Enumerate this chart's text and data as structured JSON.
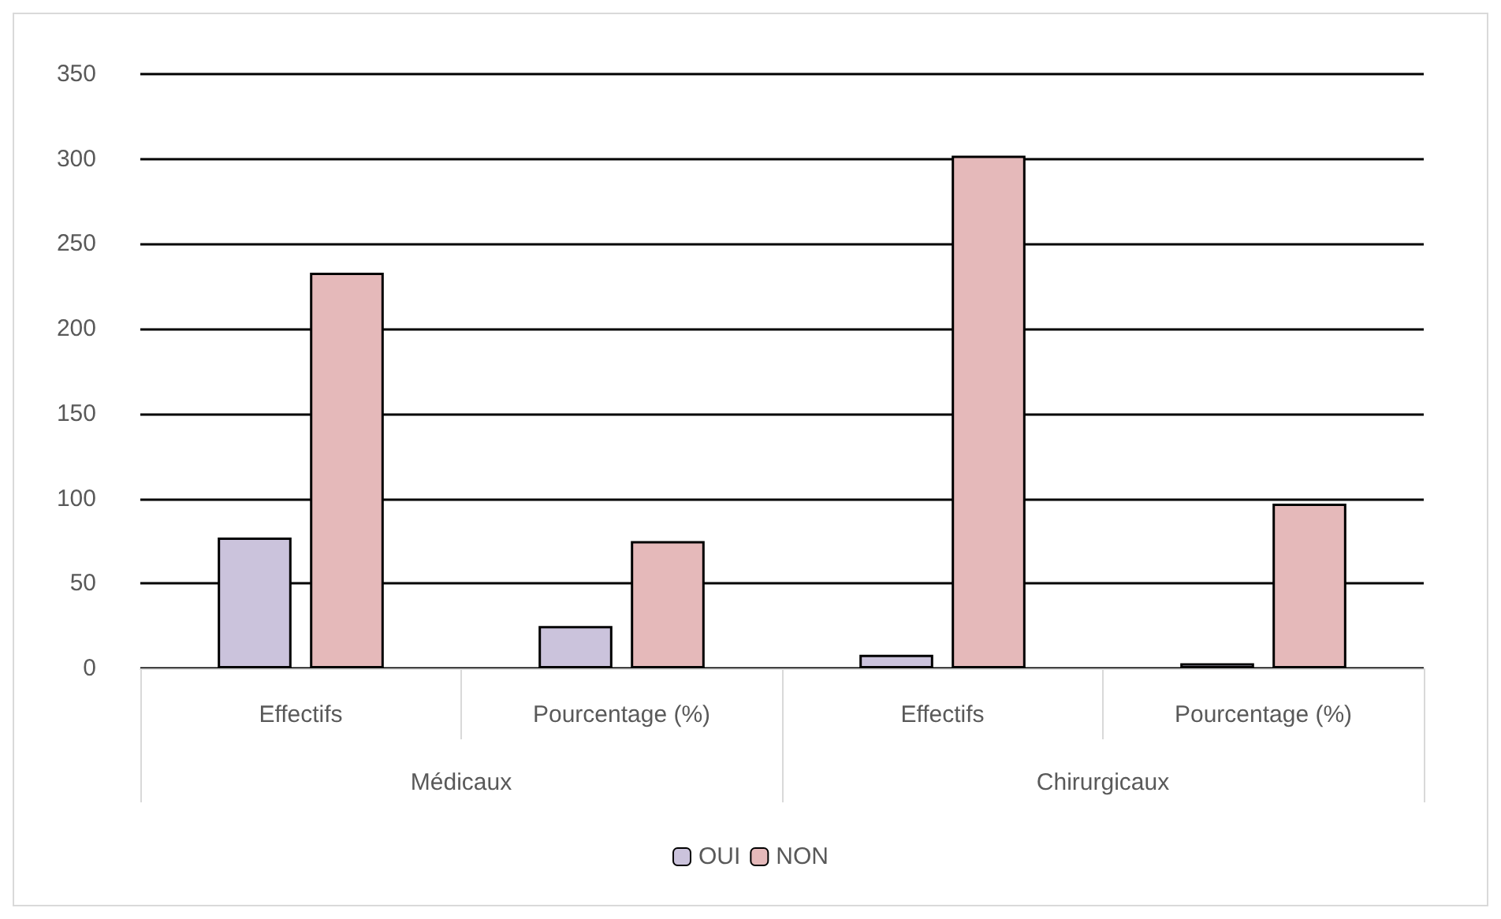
{
  "chart_data": {
    "type": "bar",
    "categories": [
      "Effectifs",
      "Pourcentage (%)",
      "Effectifs",
      "Pourcentage (%)"
    ],
    "annotations": [
      "Médicaux",
      "Chirurgicaux"
    ],
    "series": [
      {
        "name": "OUI",
        "color": "#cbc3dc",
        "values": [
          77,
          25,
          8,
          3
        ]
      },
      {
        "name": "NON",
        "color": "#e5b9ba",
        "values": [
          233,
          75,
          302,
          97
        ]
      }
    ],
    "ylim": [
      0,
      350
    ],
    "yticks": [
      0,
      50,
      100,
      150,
      200,
      250,
      300,
      350
    ],
    "grid": "y",
    "legend": "bottom"
  }
}
